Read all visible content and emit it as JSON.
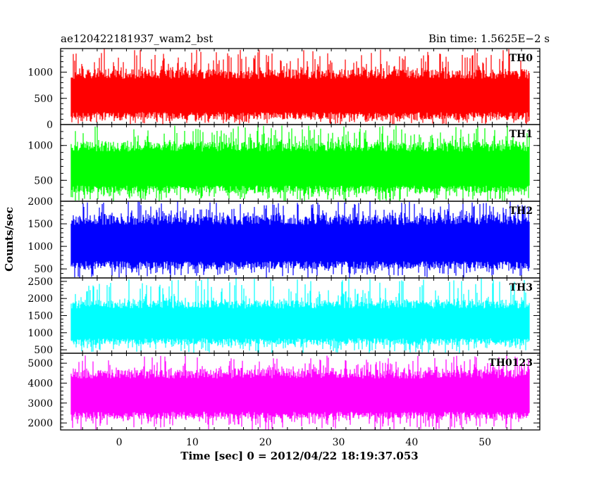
{
  "header": {
    "left_title": "ae120422181937_wam2_bst",
    "right_title": "Bin time: 1.5625E−2 s"
  },
  "axes": {
    "xlabel": "Time [sec] 0 = 2012/04/22 18:19:37.053",
    "ylabel": "Counts/sec",
    "xlim": [
      -8,
      57.5
    ],
    "xticks": [
      0,
      10,
      20,
      30,
      40,
      50
    ],
    "xtick_labels": [
      "0",
      "10",
      "20",
      "30",
      "40",
      "50"
    ]
  },
  "chart_data": [
    {
      "type": "line",
      "label": "TH0",
      "color": "#ff0000",
      "x_range": [
        -8,
        56.1
      ],
      "ylim": [
        0,
        1450
      ],
      "yticks": [
        0,
        500,
        1000
      ],
      "ytick_labels": [
        "0",
        "500",
        "1000"
      ],
      "envelope": {
        "typical_min": 100,
        "typical_max": 1050,
        "extreme_min": 0,
        "extreme_max": 1450
      }
    },
    {
      "type": "line",
      "label": "TH1",
      "color": "#00ff00",
      "x_range": [
        -8,
        56.1
      ],
      "ylim": [
        200,
        1300
      ],
      "yticks": [
        500,
        1000
      ],
      "ytick_labels": [
        "500",
        "1000"
      ],
      "envelope": {
        "typical_min": 320,
        "typical_max": 1050,
        "extreme_min": 200,
        "extreme_max": 1300
      }
    },
    {
      "type": "line",
      "label": "TH2",
      "color": "#0000ff",
      "x_range": [
        -8,
        56.1
      ],
      "ylim": [
        300,
        2000
      ],
      "yticks": [
        500,
        1000,
        1500,
        2000
      ],
      "ytick_labels": [
        "500",
        "1000",
        "1500",
        "2000"
      ],
      "envelope": {
        "typical_min": 500,
        "typical_max": 1700,
        "extreme_min": 300,
        "extreme_max": 2000
      }
    },
    {
      "type": "line",
      "label": "TH3",
      "color": "#00ffff",
      "x_range": [
        -8,
        56.1
      ],
      "ylim": [
        400,
        2600
      ],
      "yticks": [
        500,
        1000,
        1500,
        2000,
        2500
      ],
      "ytick_labels": [
        "500",
        "1000",
        "1500",
        "2000",
        "2500"
      ],
      "envelope": {
        "typical_min": 650,
        "typical_max": 1950,
        "extreme_min": 400,
        "extreme_max": 2600
      }
    },
    {
      "type": "line",
      "label": "TH0123",
      "color": "#ff00ff",
      "x_range": [
        -8,
        56.1
      ],
      "ylim": [
        1650,
        5500
      ],
      "yticks": [
        2000,
        3000,
        4000,
        5000
      ],
      "ytick_labels": [
        "2000",
        "3000",
        "4000",
        "5000"
      ],
      "envelope": {
        "typical_min": 2200,
        "typical_max": 4700,
        "extreme_min": 1650,
        "extreme_max": 5400
      }
    }
  ]
}
